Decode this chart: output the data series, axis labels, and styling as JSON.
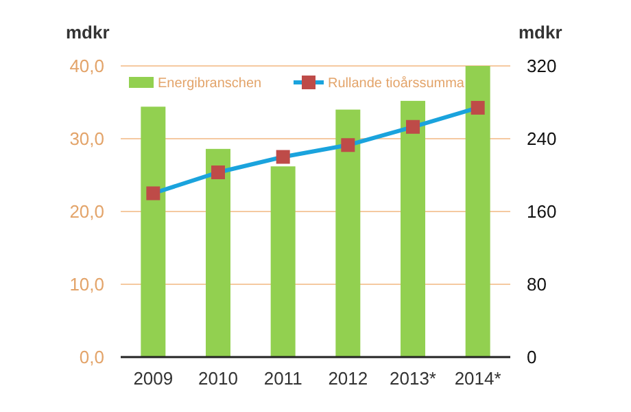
{
  "chart_data": {
    "type": "bar",
    "ylabel": "mdkr",
    "y2label": "mdkr",
    "categories": [
      "2009",
      "2010",
      "2011",
      "2012",
      "2013*",
      "2014*"
    ],
    "series": [
      {
        "name": "Energibranschen",
        "color": "#92d050",
        "values": [
          34.4,
          28.6,
          26.2,
          34.0,
          35.2,
          40.0
        ]
      },
      {
        "name": "Rullande tioårssumma",
        "type": "line",
        "axis": "y2",
        "color": "#1aa3dd",
        "marker": "square",
        "values": [
          180,
          203,
          220,
          233,
          253,
          274
        ]
      }
    ],
    "ylim": [
      0,
      40
    ],
    "yticks": [
      {
        "value": 0,
        "label": "0,0"
      },
      {
        "value": 10,
        "label": "10,0"
      },
      {
        "value": 20,
        "label": "20,0"
      },
      {
        "value": 30,
        "label": "30,0"
      },
      {
        "value": 40,
        "label": "40,0"
      }
    ],
    "y2lim": [
      0,
      320
    ],
    "y2ticks": [
      0,
      80,
      160,
      240,
      320
    ],
    "grid": "y",
    "legend": "top"
  }
}
